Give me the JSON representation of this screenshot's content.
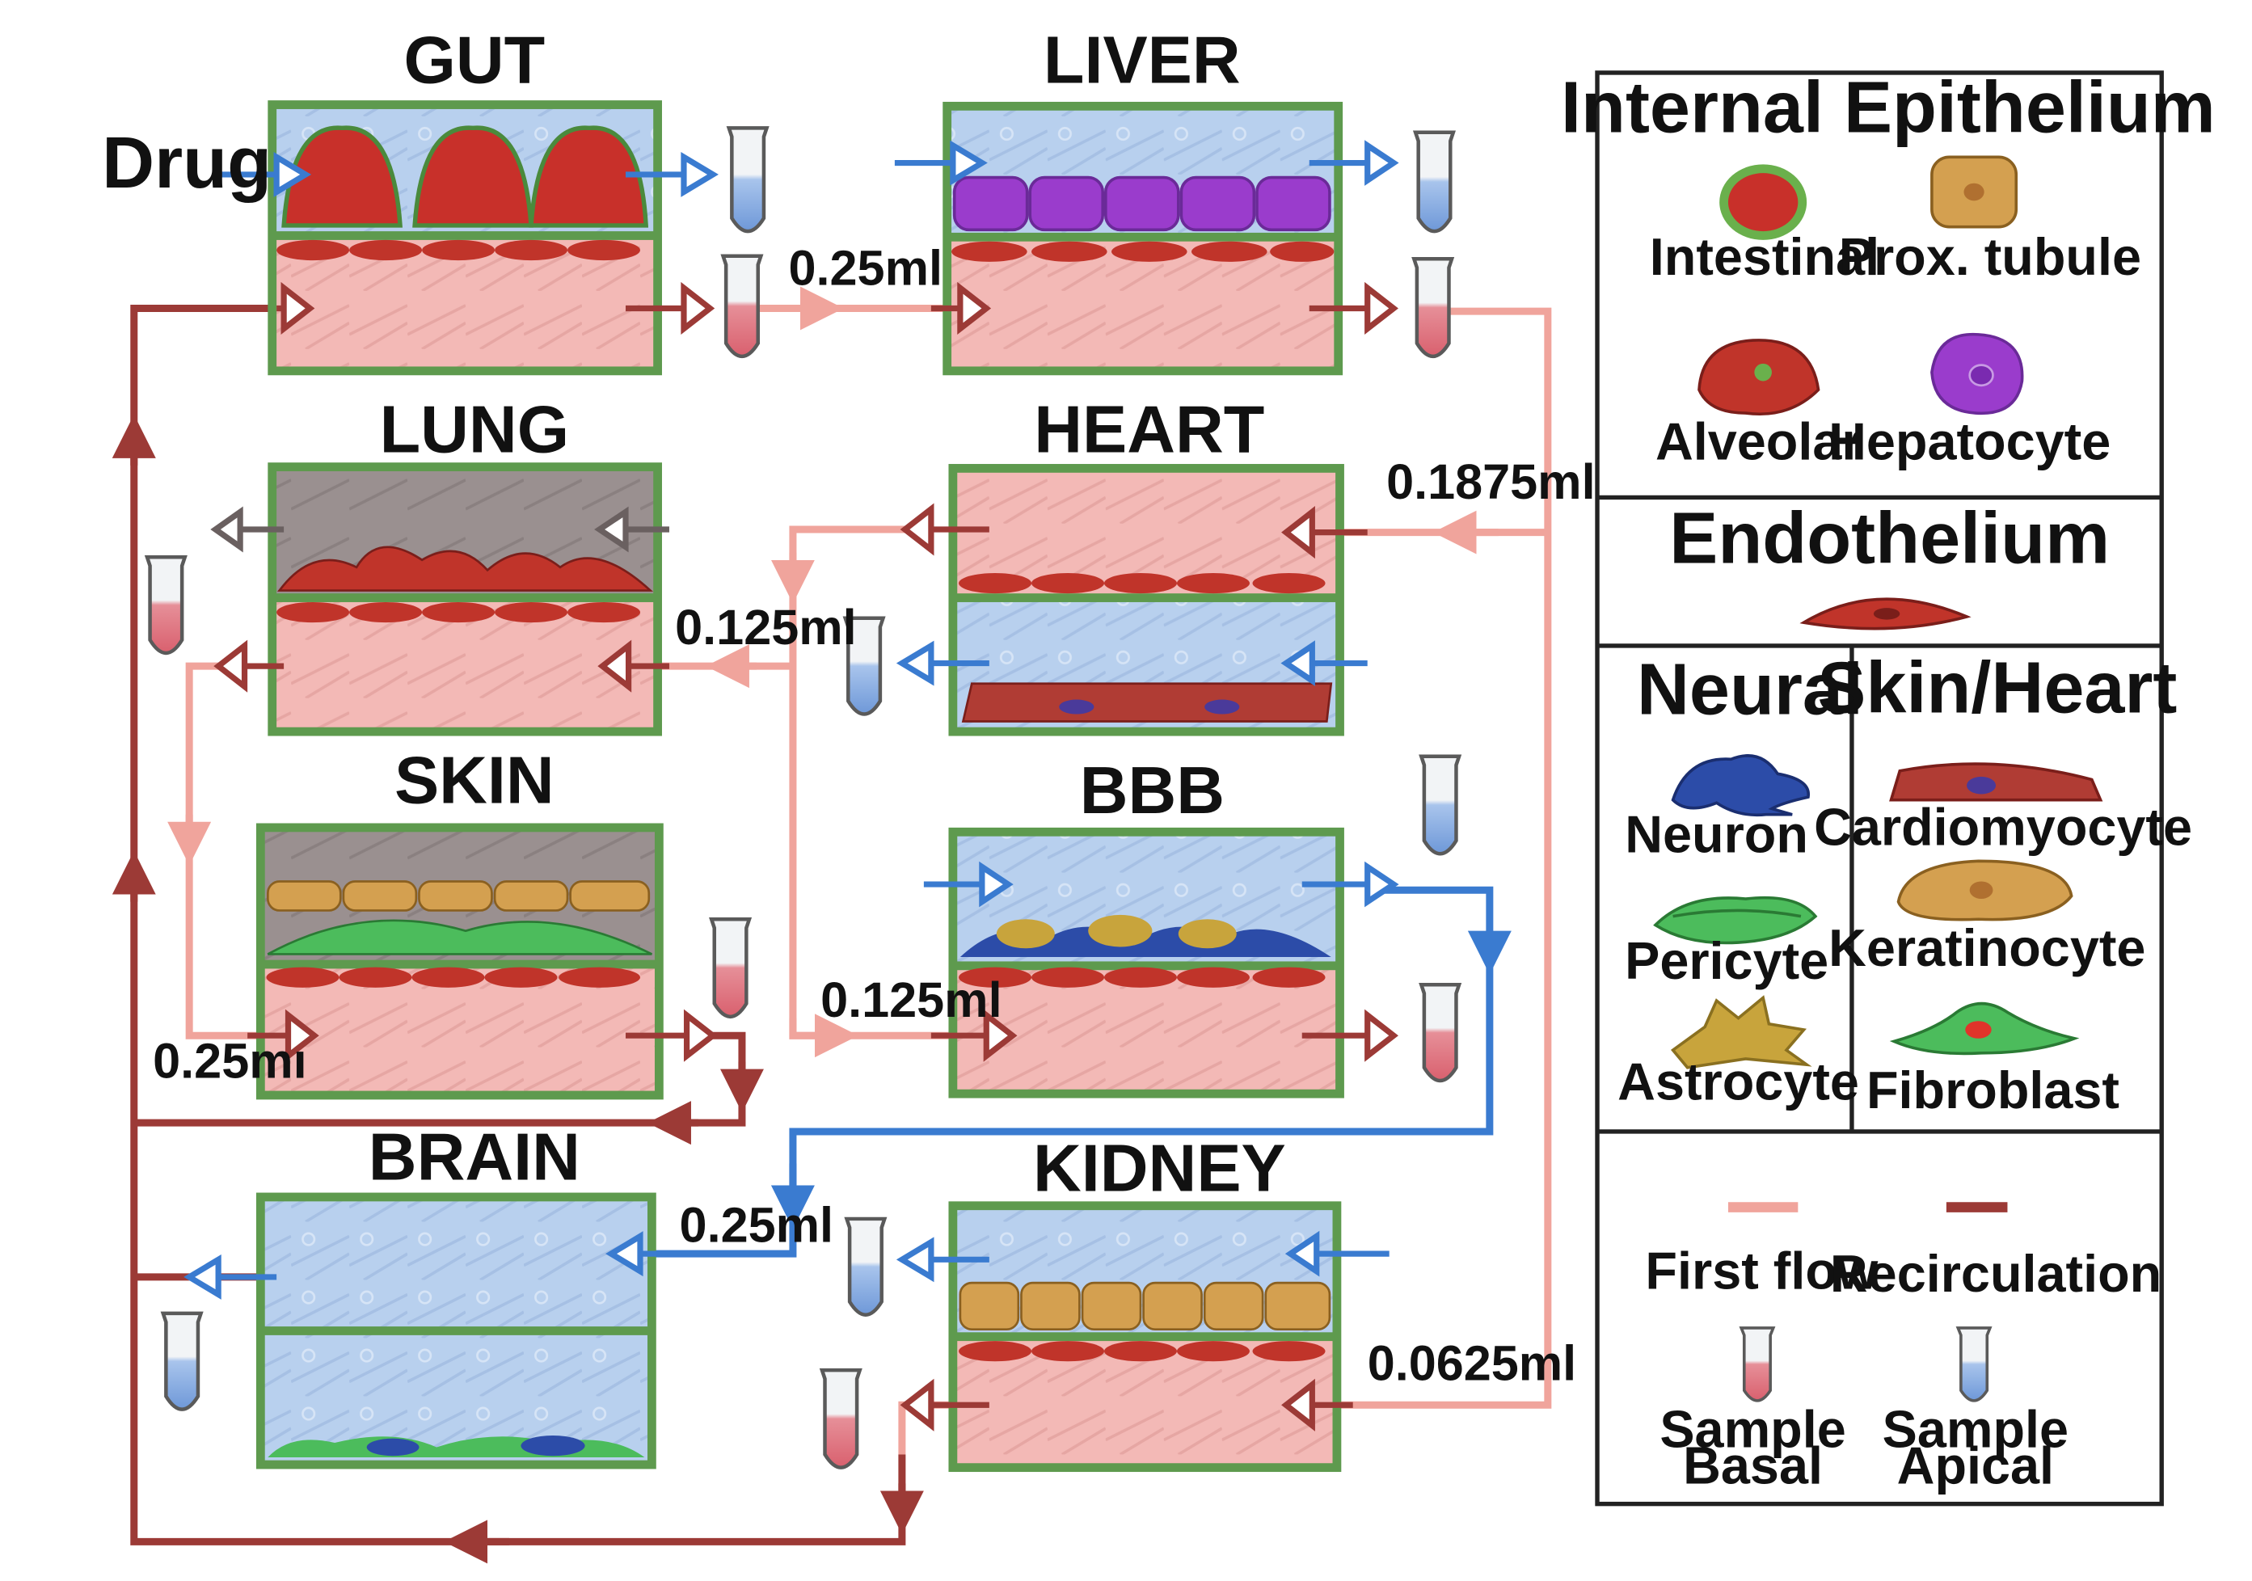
{
  "organs": {
    "gut": "GUT",
    "liver": "LIVER",
    "lung": "LUNG",
    "heart": "HEART",
    "skin": "SKIN",
    "bbb": "BBB",
    "brain": "BRAIN",
    "kidney": "KIDNEY"
  },
  "input_label": "Drug",
  "volumes": {
    "gut_liver": "0.25ml",
    "heart": "0.1875ml",
    "lung": "0.125ml",
    "bbb": "0.125ml",
    "skin": "0.25mı",
    "brain": "0.25ml",
    "kidney": "0.0625ml"
  },
  "legend": {
    "internal_epithelium": {
      "title": "Internal Epithelium",
      "items": [
        "Intestinal",
        "Prox. tubule",
        "Alveolar",
        "Hepatocyte"
      ]
    },
    "endothelium": {
      "title": "Endothelium"
    },
    "neural": {
      "title": "Neural",
      "items": [
        "Neuron",
        "Pericyte",
        "Astrocyte"
      ]
    },
    "skin_heart": {
      "title": "Skin/Heart",
      "items": [
        "Cardiomyocyte",
        "Keratinocyte",
        "Fibroblast"
      ]
    },
    "flows": {
      "first_flow": "First flow",
      "recirculation": "Recirculation",
      "sample_basal": [
        "Sample",
        "Basal"
      ],
      "sample_apical": [
        "Sample",
        "Apical"
      ]
    }
  },
  "colors": {
    "first_flow": "#f0a49c",
    "recirculation": "#9c3a36",
    "apical_flow": "#3a7bd0",
    "frame": "#5e9a4e",
    "basal_fill": "#f3b9b6",
    "apical_fill": "#b8d0ee",
    "air_fill": "#9a9090",
    "endothelial_cell": "#c0342a",
    "intestinal_cell": "#c8302a",
    "hepatocyte_cell": "#9a3ccc",
    "tubule_cell": "#d4a050",
    "keratinocyte_cell": "#d4a050",
    "fibroblast_cell": "#4cbc5c",
    "neuron_cell": "#2c4ca8",
    "astrocyte_cell": "#c8a43c",
    "pericyte_cell": "#4cbc5c",
    "cardiomyocyte_cell": "#b03c34"
  }
}
